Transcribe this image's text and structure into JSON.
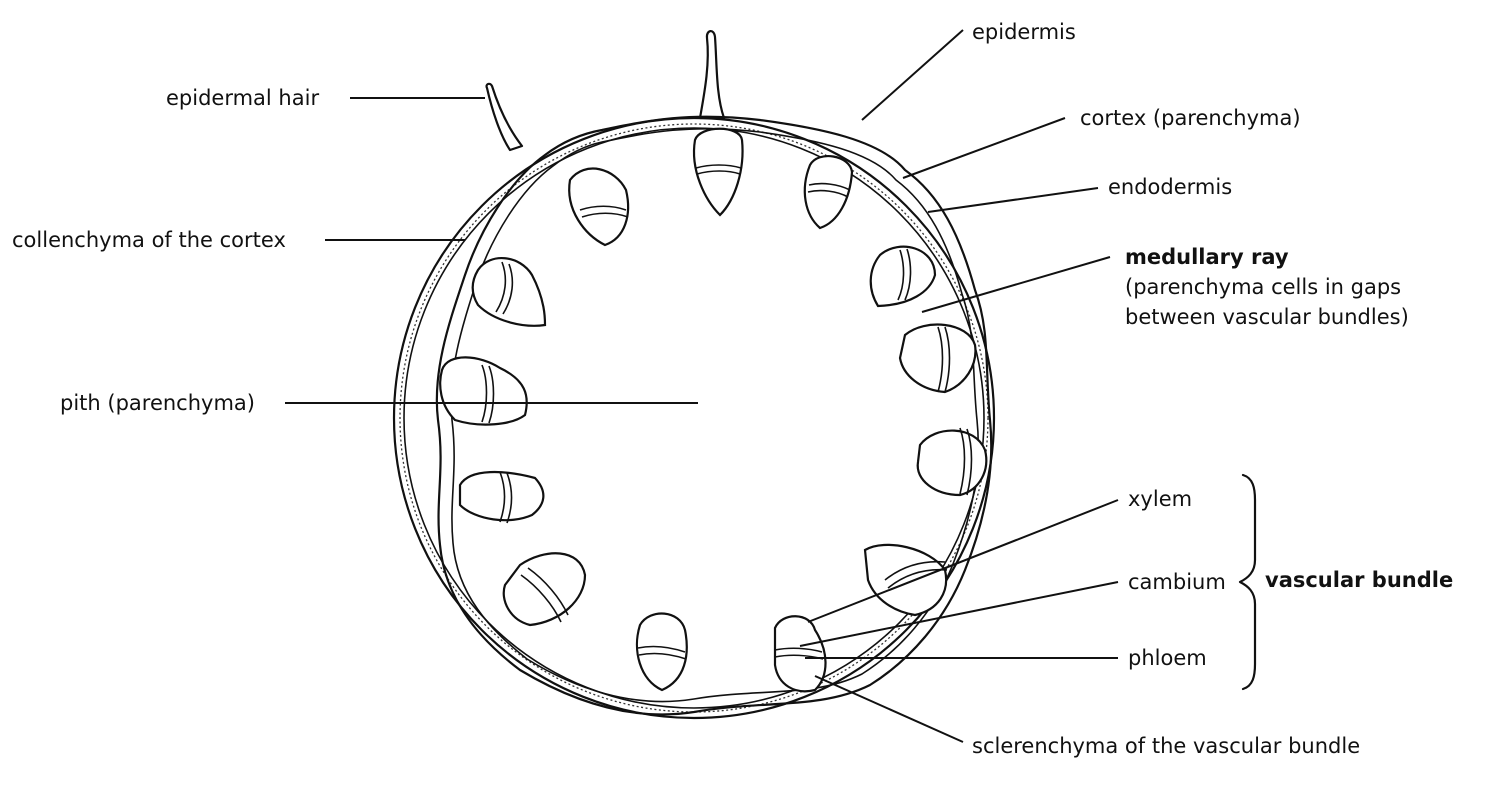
{
  "labels": {
    "epidermis": "epidermis",
    "epidermal_hair": "epidermal hair",
    "cortex": "cortex (parenchyma)",
    "endodermis": "endodermis",
    "collenchyma": "collenchyma of the cortex",
    "medullary_ray_title": "medullary ray",
    "medullary_ray_line1": "(parenchyma cells in gaps",
    "medullary_ray_line2": "between vascular bundles)",
    "pith": "pith (parenchyma)",
    "xylem": "xylem",
    "cambium": "cambium",
    "phloem": "phloem",
    "vascular_bundle": "vascular bundle",
    "sclerenchyma": "sclerenchyma of the vascular bundle"
  },
  "colors": {
    "ink": "#111111",
    "background": "#ffffff"
  }
}
